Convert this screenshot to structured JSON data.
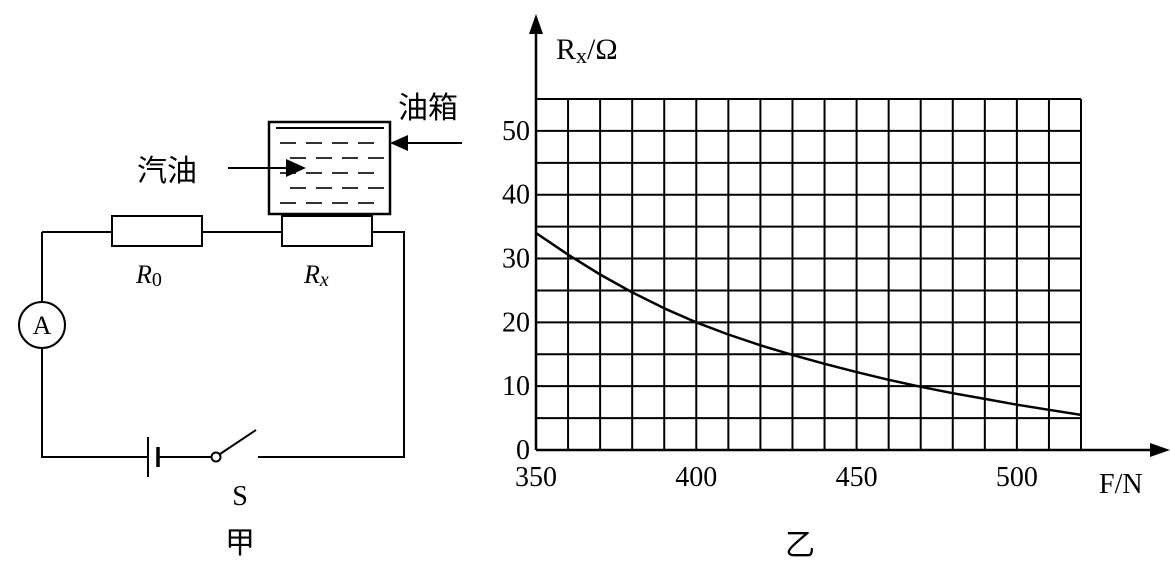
{
  "circuit": {
    "oil_tank_label": "油箱",
    "gasoline_label": "汽油",
    "r0_main": "R",
    "r0_sub": "0",
    "rx_main": "R",
    "rx_sub": "x",
    "ammeter_label": "A",
    "switch_label": "S",
    "caption": "甲"
  },
  "graph": {
    "caption": "乙",
    "y_axis_label_main": "R",
    "y_axis_label_sub": "x",
    "y_axis_label_unit": "/Ω",
    "x_axis_label": "F/N"
  },
  "chart_data": {
    "type": "line",
    "xlabel": "F/N",
    "ylabel": "Rx/Ω",
    "xlim": [
      350,
      520
    ],
    "ylim": [
      0,
      55
    ],
    "x_ticks": [
      "350",
      "400",
      "450",
      "500"
    ],
    "y_ticks": [
      "0",
      "10",
      "20",
      "30",
      "40",
      "50"
    ],
    "grid": true,
    "series": [
      {
        "x": [
          350,
          360,
          370,
          380,
          390,
          400,
          410,
          420,
          430,
          440,
          450,
          460,
          470,
          480,
          490,
          500,
          510,
          520
        ],
        "values": [
          34,
          30.6,
          27.5,
          24.7,
          22.2,
          20,
          18.1,
          16.4,
          14.9,
          13.5,
          12.2,
          11,
          9.9,
          8.9,
          8,
          7.1,
          6.3,
          5.5
        ]
      }
    ]
  }
}
